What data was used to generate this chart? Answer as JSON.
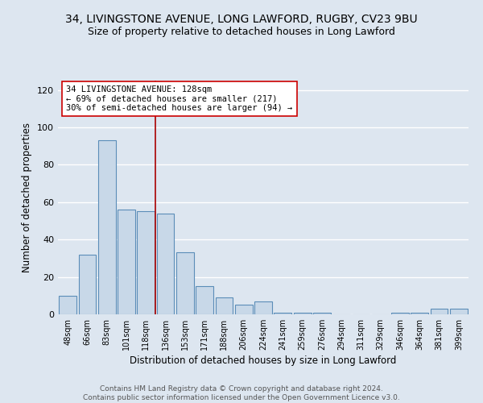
{
  "title1": "34, LIVINGSTONE AVENUE, LONG LAWFORD, RUGBY, CV23 9BU",
  "title2": "Size of property relative to detached houses in Long Lawford",
  "xlabel": "Distribution of detached houses by size in Long Lawford",
  "ylabel": "Number of detached properties",
  "categories": [
    "48sqm",
    "66sqm",
    "83sqm",
    "101sqm",
    "118sqm",
    "136sqm",
    "153sqm",
    "171sqm",
    "188sqm",
    "206sqm",
    "224sqm",
    "241sqm",
    "259sqm",
    "276sqm",
    "294sqm",
    "311sqm",
    "329sqm",
    "346sqm",
    "364sqm",
    "381sqm",
    "399sqm"
  ],
  "values": [
    10,
    32,
    93,
    56,
    55,
    54,
    33,
    15,
    9,
    5,
    7,
    1,
    1,
    1,
    0,
    0,
    0,
    1,
    1,
    3,
    3
  ],
  "bar_color": "#c8d8e8",
  "bar_edge_color": "#5b8db8",
  "vline_x": 4.5,
  "vline_color": "#aa0000",
  "annotation_text": "34 LIVINGSTONE AVENUE: 128sqm\n← 69% of detached houses are smaller (217)\n30% of semi-detached houses are larger (94) →",
  "annotation_box_color": "#ffffff",
  "annotation_box_edge": "#cc0000",
  "ylim": [
    0,
    125
  ],
  "yticks": [
    0,
    20,
    40,
    60,
    80,
    100,
    120
  ],
  "footer_text": "Contains HM Land Registry data © Crown copyright and database right 2024.\nContains public sector information licensed under the Open Government Licence v3.0.",
  "bg_color": "#dde6f0",
  "grid_color": "#ffffff",
  "title1_fontsize": 10,
  "title2_fontsize": 9,
  "xlabel_fontsize": 8.5,
  "ylabel_fontsize": 8.5
}
